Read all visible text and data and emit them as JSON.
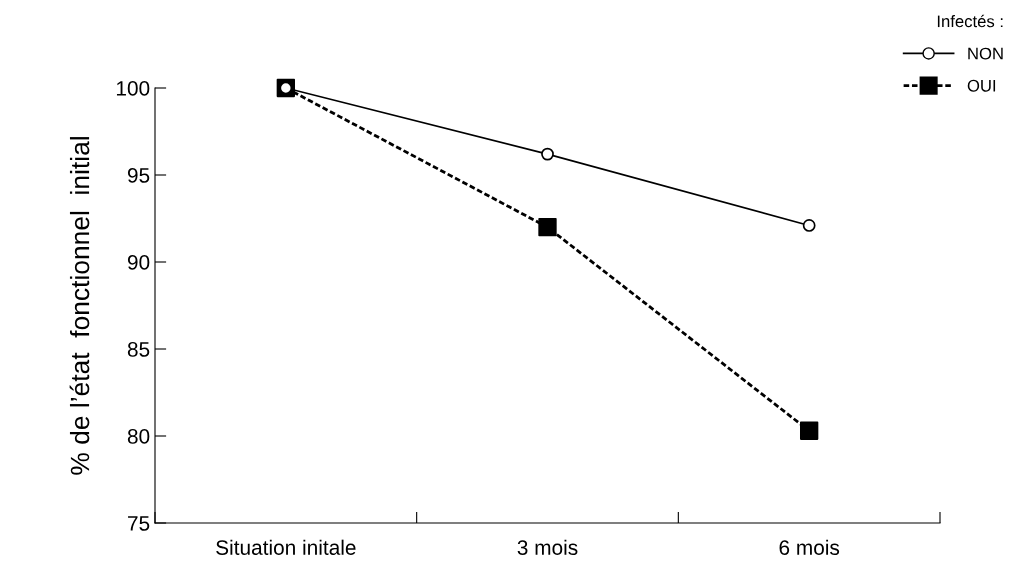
{
  "chart_data": {
    "type": "line",
    "ylabel": "% de l’état  fonctionnel  initial",
    "categories": [
      "Situation initale",
      "3 mois",
      "6 mois"
    ],
    "series": [
      {
        "name": "NON",
        "color": "#000000",
        "values": [
          100,
          96.2,
          92.1
        ],
        "marker": "circle",
        "line_style": "solid"
      },
      {
        "name": "OUI",
        "color": "#000000",
        "values": [
          100,
          92,
          80.3
        ],
        "marker": "square",
        "line_style": "dashed"
      }
    ],
    "legend_title": "Infectés :",
    "legend": "top right",
    "ylim": [
      75,
      100
    ],
    "yticks": [
      75,
      80,
      85,
      90,
      95,
      100
    ],
    "grid": false
  }
}
